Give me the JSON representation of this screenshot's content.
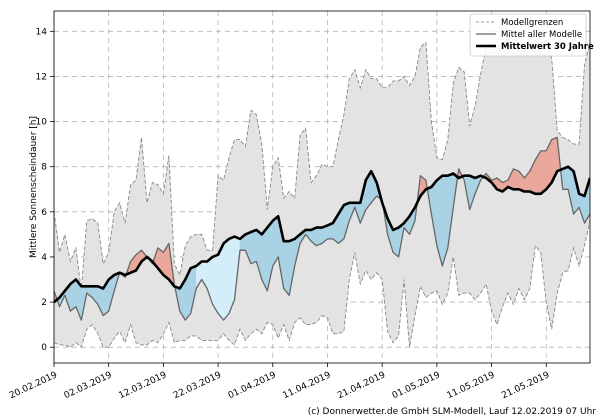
{
  "chart_data": {
    "type": "area",
    "ylabel": "Mittlere Sonnenscheindauer [h]",
    "ylim": [
      -0.7,
      14.9
    ],
    "yticks": [
      0,
      2,
      4,
      6,
      8,
      10,
      12,
      14
    ],
    "xlim_days": [
      0,
      98
    ],
    "xtick_days": [
      0,
      10,
      20,
      30,
      40,
      50,
      60,
      70,
      80,
      90
    ],
    "xtick_labels": [
      "20.02.2019",
      "02.03.2019",
      "12.03.2019",
      "22.03.2019",
      "01.04.2019",
      "11.04.2019",
      "21.04.2019",
      "01.05.2019",
      "11.05.2019",
      "21.05.2019"
    ],
    "grid": true,
    "legend": {
      "placement": "top-right",
      "entries": [
        "Modellgrenzen",
        "Mittel aller Modelle",
        "Mittelwert 30 Jahre"
      ]
    },
    "copyright": "(c) Donnerwetter.de GmbH SLM-Modell, Lauf 12.02.2019 07 Uhr",
    "colors": {
      "band_fill": "#e3e3e3",
      "band_line": "#888888",
      "above_fill": "#eaa79b",
      "below_fill": "#a9d3e5",
      "below_fill_light": "#d3eef9",
      "model_mean": "#666666",
      "climate": "#000000",
      "grid": "#b5b5b5"
    },
    "series": [
      {
        "name": "Modellgrenzen (Maximum)",
        "x": [
          0,
          1,
          2,
          3,
          4,
          5,
          6,
          7,
          8,
          9,
          10,
          11,
          12,
          13,
          14,
          15,
          16,
          17,
          18,
          19,
          20,
          21,
          22,
          23,
          24,
          25,
          26,
          27,
          28,
          29,
          30,
          31,
          32,
          33,
          34,
          35,
          36,
          37,
          38,
          39,
          40,
          41,
          42,
          43,
          44,
          45,
          46,
          47,
          48,
          49,
          50,
          51,
          52,
          53,
          54,
          55,
          56,
          57,
          58,
          59,
          60,
          61,
          62,
          63,
          64,
          65,
          66,
          67,
          68,
          69,
          70,
          71,
          72,
          73,
          74,
          75,
          76,
          77,
          78,
          79,
          80,
          81,
          82,
          83,
          84,
          85,
          86,
          87,
          88,
          89,
          90,
          91,
          92,
          93,
          94,
          95,
          96,
          97,
          98
        ],
        "values": [
          6.0,
          4.2,
          5.0,
          3.8,
          4.4,
          2.5,
          5.6,
          5.7,
          5.5,
          3.7,
          4.2,
          6.0,
          6.4,
          5.5,
          7.2,
          7.4,
          9.3,
          6.4,
          7.3,
          7.2,
          6.8,
          8.5,
          3.7,
          3.2,
          4.5,
          4.9,
          5.0,
          5.0,
          4.3,
          4.3,
          7.6,
          7.4,
          8.4,
          9.2,
          9.2,
          8.9,
          10.5,
          10.3,
          9.0,
          6.1,
          8.0,
          8.4,
          6.6,
          6.9,
          6.6,
          9.4,
          9.7,
          7.3,
          7.6,
          8.1,
          8.0,
          8.0,
          9.2,
          10.3,
          11.9,
          12.3,
          11.5,
          12.3,
          11.9,
          11.9,
          11.5,
          11.5,
          11.8,
          11.8,
          12.0,
          11.6,
          12.0,
          13.3,
          13.5,
          10.0,
          8.4,
          8.3,
          9.2,
          11.7,
          12.4,
          12.2,
          9.8,
          10.7,
          12.1,
          13.3,
          13.3,
          13.4,
          13.4,
          13.7,
          13.7,
          13.5,
          13.3,
          13.5,
          13.6,
          13.5,
          13.6,
          12.8,
          9.6,
          9.3,
          9.2,
          9.0,
          9.0,
          12.5,
          13.5
        ]
      },
      {
        "name": "Modellgrenzen (Minimum)",
        "x": [
          0,
          1,
          2,
          3,
          4,
          5,
          6,
          7,
          8,
          9,
          10,
          11,
          12,
          13,
          14,
          15,
          16,
          17,
          18,
          19,
          20,
          21,
          22,
          23,
          24,
          25,
          26,
          27,
          28,
          29,
          30,
          31,
          32,
          33,
          34,
          35,
          36,
          37,
          38,
          39,
          40,
          41,
          42,
          43,
          44,
          45,
          46,
          47,
          48,
          49,
          50,
          51,
          52,
          53,
          54,
          55,
          56,
          57,
          58,
          59,
          60,
          61,
          62,
          63,
          64,
          65,
          66,
          67,
          68,
          69,
          70,
          71,
          72,
          73,
          74,
          75,
          76,
          77,
          78,
          79,
          80,
          81,
          82,
          83,
          84,
          85,
          86,
          87,
          88,
          89,
          90,
          91,
          92,
          93,
          94,
          95,
          96,
          97,
          98
        ],
        "values": [
          0.2,
          0.1,
          0.1,
          0.0,
          0.2,
          0.0,
          0.8,
          1.0,
          0.6,
          0.0,
          0.0,
          0.4,
          0.7,
          0.2,
          1.0,
          0.2,
          0.1,
          0.1,
          0.3,
          0.2,
          0.6,
          1.1,
          0.2,
          0.3,
          0.3,
          0.5,
          0.5,
          0.3,
          0.3,
          0.3,
          0.3,
          0.6,
          0.3,
          0.1,
          0.8,
          0.3,
          0.6,
          0.8,
          0.6,
          1.1,
          1.0,
          0.4,
          1.0,
          0.3,
          1.1,
          1.3,
          1.0,
          1.0,
          1.1,
          1.4,
          1.3,
          0.6,
          0.6,
          0.7,
          3.0,
          4.2,
          2.8,
          3.4,
          3.0,
          3.3,
          3.0,
          0.7,
          0.2,
          0.5,
          3.0,
          0.0,
          1.4,
          2.7,
          2.2,
          2.4,
          2.5,
          1.9,
          2.4,
          4.0,
          2.3,
          2.4,
          2.4,
          2.1,
          2.4,
          2.8,
          1.6,
          1.0,
          1.8,
          2.4,
          1.9,
          2.6,
          2.1,
          2.6,
          4.5,
          4.2,
          2.0,
          0.8,
          2.4,
          3.3,
          3.4,
          4.4,
          3.6,
          4.5,
          5.6
        ]
      },
      {
        "name": "Mittel aller Modelle",
        "x": [
          0,
          1,
          2,
          3,
          4,
          5,
          6,
          7,
          8,
          9,
          10,
          11,
          12,
          13,
          14,
          15,
          16,
          17,
          18,
          19,
          20,
          21,
          22,
          23,
          24,
          25,
          26,
          27,
          28,
          29,
          30,
          31,
          32,
          33,
          34,
          35,
          36,
          37,
          38,
          39,
          40,
          41,
          42,
          43,
          44,
          45,
          46,
          47,
          48,
          49,
          50,
          51,
          52,
          53,
          54,
          55,
          56,
          57,
          58,
          59,
          60,
          61,
          62,
          63,
          64,
          65,
          66,
          67,
          68,
          69,
          70,
          71,
          72,
          73,
          74,
          75,
          76,
          77,
          78,
          79,
          80,
          81,
          82,
          83,
          84,
          85,
          86,
          87,
          88,
          89,
          90,
          91,
          92,
          93,
          94,
          95,
          96,
          97,
          98
        ],
        "values": [
          2.5,
          1.8,
          2.3,
          1.6,
          1.8,
          1.2,
          2.4,
          2.2,
          1.9,
          1.4,
          1.6,
          2.5,
          3.3,
          3.1,
          3.8,
          4.1,
          4.3,
          4.0,
          3.7,
          4.4,
          4.2,
          4.6,
          2.8,
          1.6,
          1.2,
          1.5,
          2.6,
          3.0,
          2.6,
          1.9,
          1.5,
          1.2,
          1.5,
          2.1,
          4.3,
          4.3,
          3.7,
          3.8,
          3.0,
          2.5,
          3.6,
          4.0,
          2.6,
          2.3,
          3.6,
          4.6,
          5.0,
          4.7,
          4.5,
          4.6,
          4.8,
          4.8,
          4.6,
          4.8,
          5.6,
          6.2,
          5.5,
          6.1,
          6.4,
          6.7,
          6.5,
          5.0,
          4.2,
          4.0,
          5.3,
          5.0,
          5.6,
          7.6,
          7.4,
          5.9,
          4.5,
          3.6,
          4.4,
          6.2,
          7.9,
          7.4,
          6.1,
          6.8,
          7.4,
          7.7,
          7.4,
          7.5,
          7.3,
          7.4,
          7.9,
          7.8,
          7.5,
          7.8,
          8.3,
          8.7,
          8.7,
          9.2,
          9.3,
          7.0,
          7.0,
          5.9,
          6.2,
          5.5,
          5.9
        ]
      },
      {
        "name": "Mittelwert 30 Jahre",
        "x": [
          0,
          1,
          2,
          3,
          4,
          5,
          6,
          7,
          8,
          9,
          10,
          11,
          12,
          13,
          14,
          15,
          16,
          17,
          18,
          19,
          20,
          21,
          22,
          23,
          24,
          25,
          26,
          27,
          28,
          29,
          30,
          31,
          32,
          33,
          34,
          35,
          36,
          37,
          38,
          39,
          40,
          41,
          42,
          43,
          44,
          45,
          46,
          47,
          48,
          49,
          50,
          51,
          52,
          53,
          54,
          55,
          56,
          57,
          58,
          59,
          60,
          61,
          62,
          63,
          64,
          65,
          66,
          67,
          68,
          69,
          70,
          71,
          72,
          73,
          74,
          75,
          76,
          77,
          78,
          79,
          80,
          81,
          82,
          83,
          84,
          85,
          86,
          87,
          88,
          89,
          90,
          91,
          92,
          93,
          94,
          95,
          96,
          97,
          98
        ],
        "values": [
          2.0,
          2.2,
          2.5,
          2.8,
          3.0,
          2.7,
          2.7,
          2.7,
          2.7,
          2.6,
          3.0,
          3.2,
          3.3,
          3.2,
          3.3,
          3.4,
          3.8,
          4.0,
          3.8,
          3.5,
          3.2,
          3.0,
          2.7,
          2.6,
          3.0,
          3.5,
          3.6,
          3.8,
          3.8,
          4.0,
          4.1,
          4.6,
          4.8,
          4.9,
          4.8,
          5.0,
          5.1,
          5.2,
          5.0,
          5.3,
          5.6,
          5.8,
          4.7,
          4.7,
          4.8,
          5.0,
          5.2,
          5.2,
          5.3,
          5.3,
          5.4,
          5.5,
          5.9,
          6.3,
          6.4,
          6.4,
          6.4,
          7.4,
          7.8,
          7.3,
          6.4,
          5.7,
          5.2,
          5.3,
          5.5,
          5.8,
          6.2,
          6.7,
          7.0,
          7.1,
          7.4,
          7.6,
          7.6,
          7.7,
          7.5,
          7.6,
          7.6,
          7.5,
          7.6,
          7.5,
          7.3,
          7.0,
          6.9,
          7.1,
          7.0,
          7.0,
          6.9,
          6.9,
          6.8,
          6.8,
          7.0,
          7.3,
          7.8,
          7.9,
          8.0,
          7.8,
          6.8,
          6.7,
          7.5
        ]
      }
    ]
  }
}
